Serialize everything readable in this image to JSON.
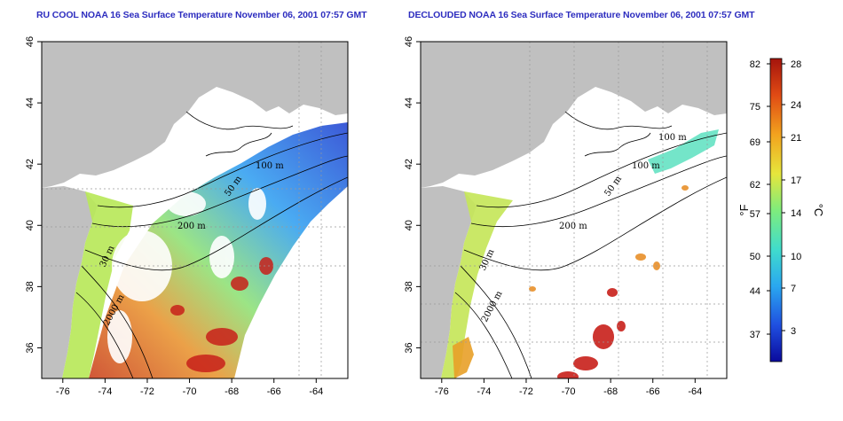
{
  "titles": {
    "left": "RU COOL NOAA 16 Sea Surface Temperature November 06, 2001 07:57 GMT",
    "right": "DECLOUDED NOAA 16 Sea Surface Temperature November 06, 2001 07:57 GMT"
  },
  "map": {
    "lon_ticks": [
      "-76",
      "-74",
      "-72",
      "-70",
      "-68",
      "-66",
      "-64"
    ],
    "lat_ticks": [
      "36",
      "38",
      "40",
      "42",
      "44",
      "46"
    ],
    "lon_range": [
      -77,
      -62.5
    ],
    "lat_range": [
      35,
      46
    ]
  },
  "contours": {
    "left": {
      "m100": "100 m",
      "m50": "50 m",
      "m200": "200 m",
      "m30": "30 m",
      "m2000": "2000 m"
    },
    "right": {
      "m100a": "100 m",
      "m100b": "100 m",
      "m50": "50 m",
      "m200": "200 m",
      "m30": "30 m",
      "m2000": "2000 m"
    }
  },
  "colorbar": {
    "fahrenheit_ticks": [
      "82",
      "75",
      "69",
      "62",
      "57",
      "50",
      "44",
      "37"
    ],
    "celsius_ticks": [
      "28",
      "24",
      "21",
      "17",
      "14",
      "10",
      "7",
      "3"
    ],
    "fahrenheit_unit": "°F",
    "celsius_unit": "°C",
    "colors": [
      "#0a0a9c",
      "#1f4fe0",
      "#2aa8f0",
      "#40dccc",
      "#7fec7c",
      "#e6e63c",
      "#f2a21e",
      "#e04a14",
      "#a4140c"
    ]
  },
  "land_color": "#c0c0c0"
}
